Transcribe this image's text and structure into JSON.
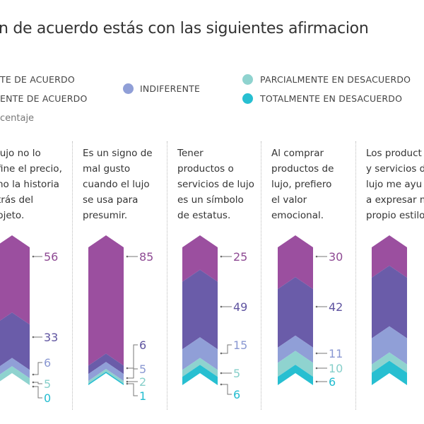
{
  "title": "n de acuerdo estás con las siguientes afirmacion",
  "unit_label": "centaje",
  "legend": [
    {
      "label": "TE DE ACUERDO",
      "color": "#9b4f9f"
    },
    {
      "label": "ENTE DE ACUERDO",
      "color": "#6a5ca9"
    },
    {
      "label": "INDIFERENTE",
      "color": "#909fd7"
    },
    {
      "label": "PARCIALMENTE EN DESACUERDO",
      "color": "#8fd3cf"
    },
    {
      "label": "TOTALMENTE EN DESACUERDO",
      "color": "#27bfd1"
    }
  ],
  "chart_data": {
    "type": "bar",
    "stacked": true,
    "unit": "percent",
    "series_colors": [
      "#9b4f9f",
      "#6a5ca9",
      "#909fd7",
      "#8fd3cf",
      "#27bfd1"
    ],
    "categories": [
      "lujo no lo\nfine el precio,\nno la historia\ntrás del\nbjeto.",
      "Es un signo de\nmal gusto\ncuando el lujo\nse usa para\npresumir.",
      "Tener\nproductos o\nservicios de lujo\nes un símbolo\nde estatus.",
      "Al comprar\nproductos de\nlujo, prefiero\nel valor\nemocional.",
      "Los product\ny servicios d\nlujo me ayu\na expresar m\npropio estilo"
    ],
    "values": [
      [
        56,
        33,
        6,
        5,
        0
      ],
      [
        85,
        6,
        5,
        2,
        1
      ],
      [
        25,
        49,
        15,
        5,
        6
      ],
      [
        30,
        42,
        11,
        10,
        6
      ],
      [
        22,
        44,
        19,
        6,
        9
      ]
    ],
    "labels_shown": [
      true,
      true,
      true,
      true,
      false
    ]
  }
}
